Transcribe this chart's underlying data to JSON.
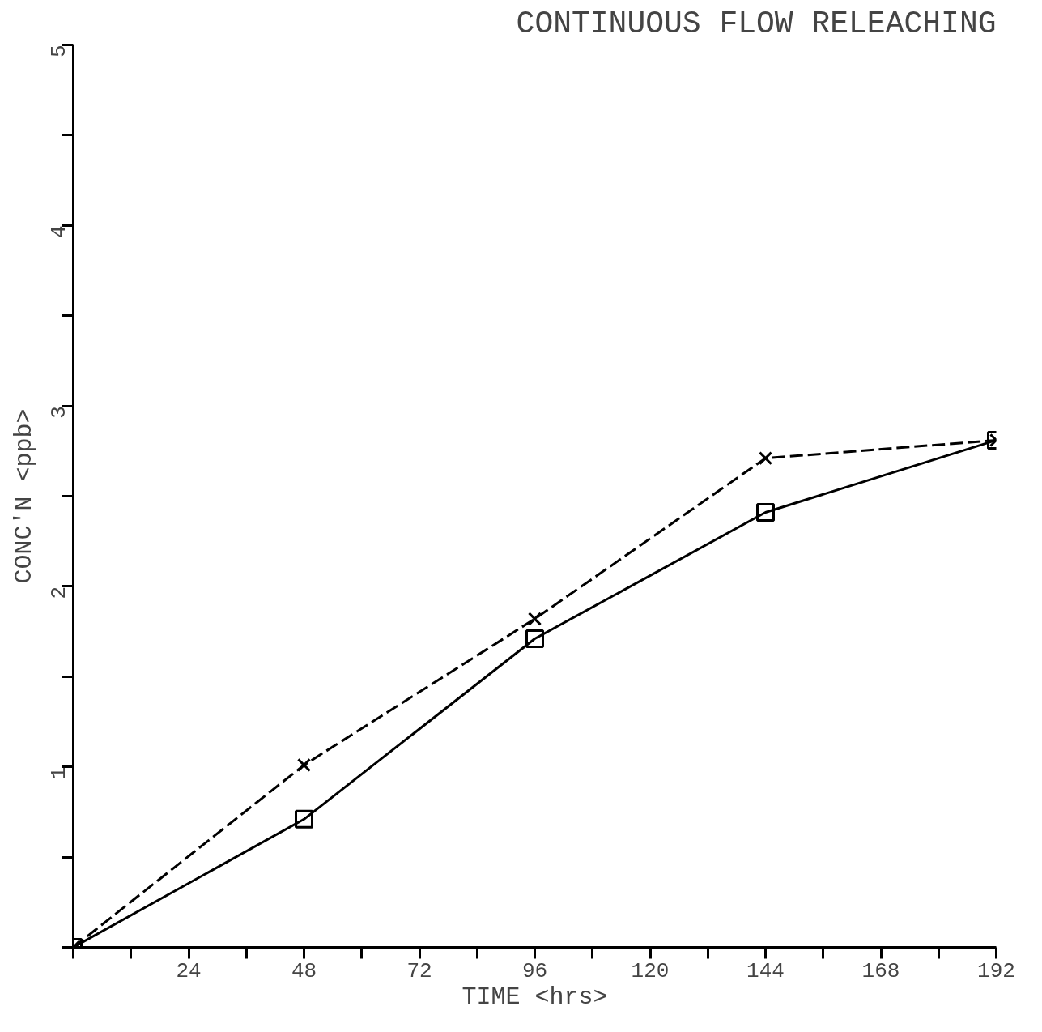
{
  "chart_data": {
    "type": "line",
    "title": "CONTINUOUS FLOW RELEACHING",
    "xlabel": "TIME <hrs>",
    "ylabel": "CONC'N <ppb>",
    "xlim": [
      0,
      192
    ],
    "ylim": [
      0,
      5
    ],
    "xticks": [
      {
        "value": 0,
        "label": null
      },
      {
        "value": 12,
        "label": null
      },
      24,
      {
        "value": 36,
        "label": null
      },
      48,
      {
        "value": 60,
        "label": null
      },
      72,
      {
        "value": 84,
        "label": null
      },
      96,
      {
        "value": 108,
        "label": null
      },
      120,
      {
        "value": 132,
        "label": null
      },
      144,
      {
        "value": 156,
        "label": null
      },
      168,
      {
        "value": 180,
        "label": null
      },
      192
    ],
    "yticks": [
      {
        "value": 0,
        "label": null
      },
      {
        "value": 0.5,
        "label": null
      },
      1,
      {
        "value": 1.5,
        "label": null
      },
      2,
      {
        "value": 2.5,
        "label": null
      },
      3,
      {
        "value": 3.5,
        "label": null
      },
      4,
      {
        "value": 4.5,
        "label": null
      },
      5
    ],
    "x": [
      0,
      48,
      96,
      144,
      192
    ],
    "series": [
      {
        "color": "#000000",
        "values": [
          0,
          1.01,
          1.82,
          2.71,
          2.81
        ],
        "marker": "cross",
        "line_style": "dashed"
      },
      {
        "color": "#000000",
        "values": [
          0,
          0.71,
          1.71,
          2.41,
          2.81
        ],
        "marker": "square",
        "line_style": "solid"
      }
    ]
  }
}
